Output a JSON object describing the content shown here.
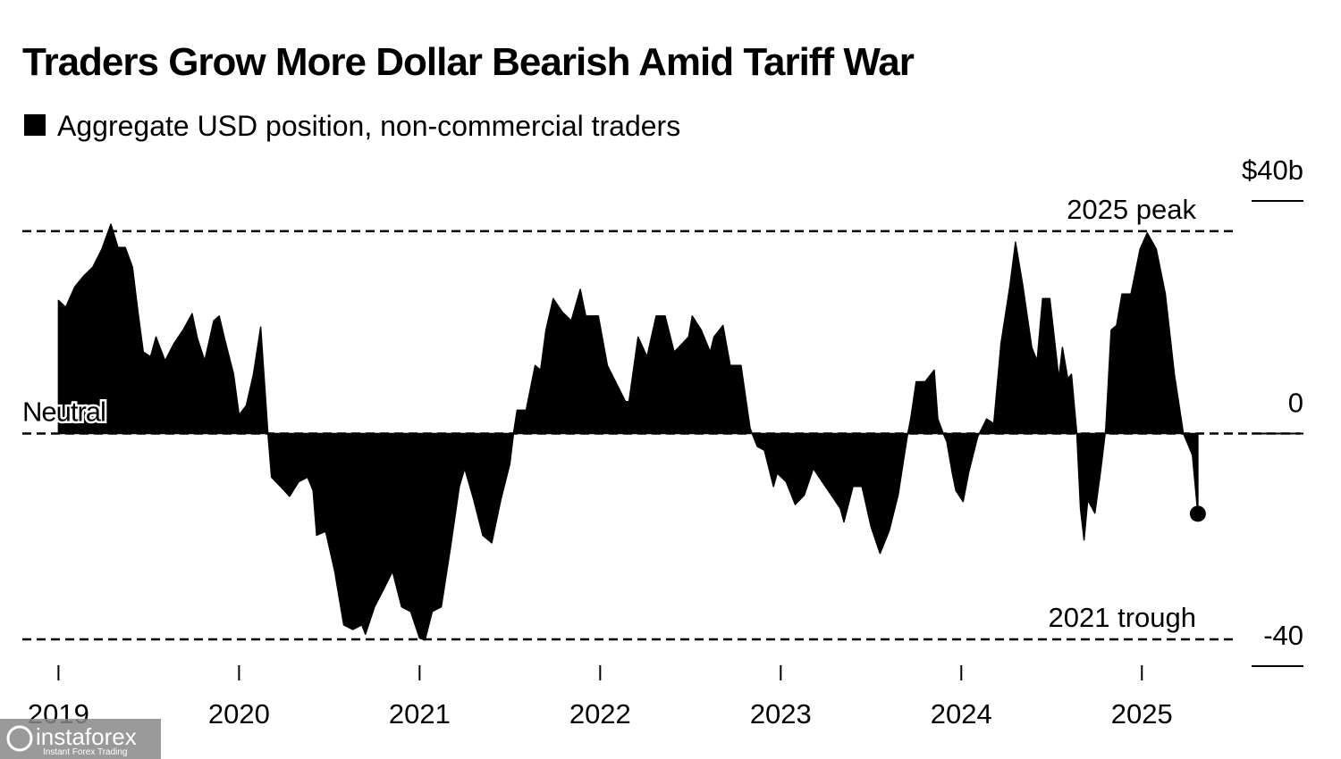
{
  "chart_data": {
    "type": "area",
    "title": "Traders Grow More Dollar Bearish Amid Tariff War",
    "x": [
      2019.0,
      2019.04,
      2019.09,
      2019.14,
      2019.19,
      2019.24,
      2019.29,
      2019.33,
      2019.37,
      2019.41,
      2019.44,
      2019.47,
      2019.51,
      2019.54,
      2019.59,
      2019.64,
      2019.69,
      2019.74,
      2019.77,
      2019.81,
      2019.86,
      2019.89,
      2019.92,
      2019.97,
      2020.0,
      2020.04,
      2020.08,
      2020.12,
      2020.16,
      2020.18,
      2020.23,
      2020.28,
      2020.33,
      2020.38,
      2020.41,
      2020.43,
      2020.48,
      2020.53,
      2020.58,
      2020.63,
      2020.68,
      2020.7,
      2020.75,
      2020.8,
      2020.85,
      2020.9,
      2020.95,
      2021.0,
      2021.03,
      2021.07,
      2021.12,
      2021.17,
      2021.22,
      2021.25,
      2021.3,
      2021.35,
      2021.4,
      2021.45,
      2021.5,
      2021.52,
      2021.54,
      2021.59,
      2021.64,
      2021.67,
      2021.7,
      2021.74,
      2021.79,
      2021.84,
      2021.89,
      2021.92,
      2021.99,
      2022.04,
      2022.09,
      2022.14,
      2022.16,
      2022.21,
      2022.26,
      2022.31,
      2022.36,
      2022.41,
      2022.49,
      2022.51,
      2022.56,
      2022.61,
      2022.63,
      2022.68,
      2022.72,
      2022.78,
      2022.83,
      2022.87,
      2022.91,
      2022.96,
      2022.98,
      2023.03,
      2023.08,
      2023.13,
      2023.18,
      2023.23,
      2023.28,
      2023.33,
      2023.35,
      2023.4,
      2023.45,
      2023.5,
      2023.55,
      2023.6,
      2023.65,
      2023.7,
      2023.72,
      2023.75,
      2023.8,
      2023.85,
      2023.87,
      2023.9,
      2023.92,
      2023.95,
      2023.97,
      2024.01,
      2024.04,
      2024.09,
      2024.14,
      2024.18,
      2024.22,
      2024.27,
      2024.3,
      2024.34,
      2024.39,
      2024.42,
      2024.45,
      2024.49,
      2024.51,
      2024.54,
      2024.56,
      2024.59,
      2024.61,
      2024.64,
      2024.66,
      2024.68,
      2024.7,
      2024.74,
      2024.77,
      2024.8,
      2024.83,
      2024.86,
      2024.89,
      2024.94,
      2024.99,
      2025.03,
      2025.08,
      2025.13,
      2025.18,
      2025.23,
      2025.26,
      2025.28,
      2025.31
    ],
    "series": [
      {
        "name": "Aggregate USD position, non-commercial traders",
        "color": "#000000",
        "values": [
          22.9,
          21.7,
          25.2,
          27.1,
          28.6,
          31.7,
          36.0,
          32.0,
          32.0,
          28.6,
          20.9,
          14.0,
          13.2,
          16.6,
          12.5,
          15.5,
          17.8,
          20.6,
          16.3,
          12.5,
          19.4,
          20.2,
          16.3,
          10.2,
          3.2,
          4.8,
          10.2,
          18.3,
          0,
          -7.5,
          -9.1,
          -10.8,
          -8.3,
          -7.5,
          -9.8,
          -17.5,
          -16.8,
          -23.7,
          -32.9,
          -33.7,
          -32.9,
          -34.5,
          -29.8,
          -26.8,
          -23.7,
          -29.8,
          -30.6,
          -35.2,
          -35.5,
          -30.6,
          -29.8,
          -19.8,
          -9.1,
          -6.0,
          -11.4,
          -17.5,
          -18.8,
          -11.4,
          -5.2,
          0,
          4.0,
          4.0,
          11.7,
          10.9,
          17.8,
          23.2,
          20.9,
          19.4,
          24.8,
          20.2,
          20.2,
          11.7,
          8.6,
          5.5,
          5.5,
          16.6,
          13.2,
          20.2,
          20.2,
          14.0,
          16.6,
          20.2,
          17.8,
          14.0,
          16.6,
          18.6,
          11.7,
          11.7,
          0.9,
          -2.2,
          -2.9,
          -9.1,
          -6.8,
          -8.3,
          -12.2,
          -10.6,
          -6.0,
          -8.3,
          -10.6,
          -12.9,
          -15.2,
          -9.1,
          -9.1,
          -16.0,
          -20.6,
          -16.8,
          -10.6,
          -0.6,
          2.5,
          8.9,
          8.9,
          10.9,
          2.5,
          0,
          -1.4,
          -6.8,
          -9.8,
          -11.7,
          -6.8,
          -0.6,
          2.5,
          1.7,
          15.5,
          25.5,
          32.9,
          25.5,
          14.8,
          12.5,
          23.2,
          23.2,
          17.8,
          9.4,
          14.8,
          9.4,
          10.2,
          0,
          -12.9,
          -18.3,
          -11.4,
          -13.7,
          -6.8,
          0.9,
          17.8,
          18.6,
          24.0,
          24.0,
          31.7,
          34.5,
          31.7,
          24.0,
          10.2,
          0,
          -2.2,
          -3.7,
          -13.8
        ]
      }
    ],
    "xlim": [
      2018.8,
      2025.88
    ],
    "xticks": [
      2019,
      2020,
      2021,
      2022,
      2023,
      2024,
      2025
    ],
    "ylim": [
      -40,
      40
    ],
    "yticks": [
      {
        "value": 40,
        "label": "$40b"
      },
      0,
      -40
    ],
    "reference_lines": [
      {
        "label": "2025 peak",
        "value": 34.8
      },
      {
        "label": "2021 trough",
        "value": -35.4
      }
    ],
    "zero_label": "Neutral",
    "last_point_marker": true
  },
  "watermark": {
    "brand": "instaforex",
    "tagline": "Instant Forex Trading"
  }
}
